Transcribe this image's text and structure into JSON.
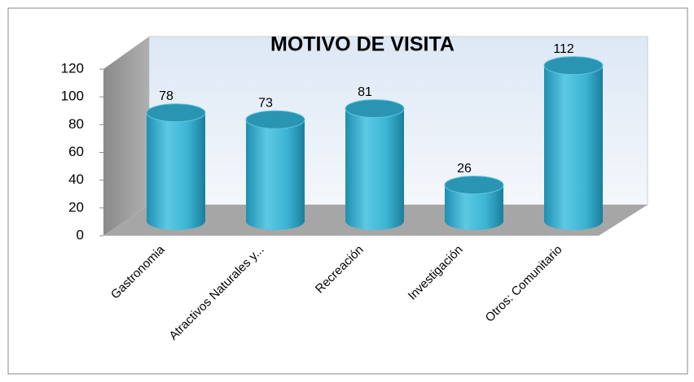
{
  "chart_data": {
    "type": "bar",
    "title": "MOTIVO DE VISITA",
    "categories": [
      "Gastronomia",
      "Atractivos Naturales y...",
      "Recreación",
      "Investigación",
      "Otros: Comunitario"
    ],
    "values": [
      78,
      73,
      81,
      26,
      112
    ],
    "color": "#3cb4d2",
    "ylim": [
      0,
      120
    ],
    "yticks": [
      0,
      20,
      40,
      60,
      80,
      100,
      120
    ]
  }
}
